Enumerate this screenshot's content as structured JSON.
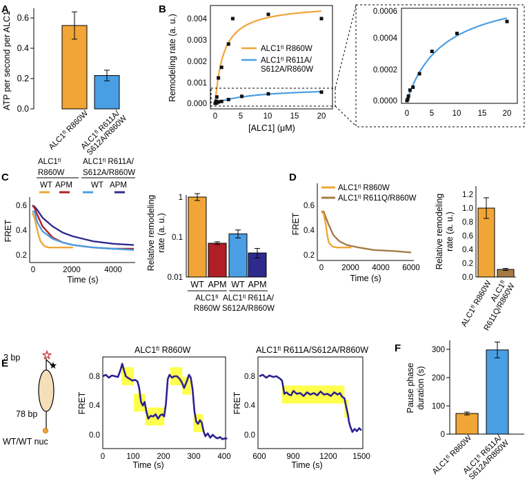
{
  "colors": {
    "orange": "#f0a536",
    "blue": "#4a9ee3",
    "red": "#b01f26",
    "navy": "#2e2b8d",
    "brown": "#a57b45",
    "trace": "#2b2190",
    "highlight": "#ffff4d"
  },
  "figure": {
    "panels": [
      "A",
      "B",
      "C",
      "D",
      "E",
      "F"
    ],
    "a": {
      "ylabel": "ATP per second per ALC1",
      "categories": [
        "ALC1ᶠˡ R860W",
        "ALC1ᶠˡ R611A/",
        "S612A/R860W"
      ],
      "yticks": [
        "0.0",
        "0.2",
        "0.4",
        "0.6"
      ]
    },
    "b": {
      "ylabel": "Remodeling rate (a. u.)",
      "xlabel": "[ALC1] (μM)",
      "yticks": [
        "0.000",
        "0.001",
        "0.002",
        "0.003",
        "0.004"
      ],
      "xticks": [
        "0",
        "5",
        "10",
        "15",
        "20"
      ],
      "legend": [
        "ALC1ᶠˡ R860W",
        "ALC1ᶠˡ R611A/",
        "S612A/R860W"
      ],
      "inset_yticks": [
        "0.0000",
        "0.0002",
        "0.0004",
        "0.0006"
      ],
      "inset_xticks": [
        "0",
        "5",
        "10",
        "15",
        "20"
      ]
    },
    "c": {
      "ylabel": "FRET",
      "xlabel": "Time (s)",
      "yticks": [
        "0.2",
        "0.4",
        "0.6"
      ],
      "xticks": [
        "0",
        "2000",
        "4000"
      ],
      "group1": [
        "ALC1ᶠˡ",
        "R860W"
      ],
      "group2": [
        "ALC1ᶠˡ R611A/",
        "S612A/R860W"
      ],
      "legend": [
        "WT",
        "APM",
        "WT",
        "APM"
      ],
      "bar_ylabel": [
        "Relative remodeling",
        "rate (a. u.)"
      ],
      "bar_yticks": [
        "1",
        "0.1",
        "0.01"
      ],
      "bar_categories": [
        "WT",
        "APM",
        "WT",
        "APM"
      ],
      "bar_groups": [
        "ALC1ᶠˡ",
        "R860W",
        "ALC1ᶠˡ R611A/",
        "S612A/R860W"
      ]
    },
    "d": {
      "ylabel": "FRET",
      "xlabel": "Time (s)",
      "yticks": [
        "0.2",
        "0.4",
        "0.6"
      ],
      "xticks": [
        "0",
        "2000",
        "4000",
        "6000"
      ],
      "legend": [
        "ALC1ᶠˡ R860W",
        "ALC1ᶠˡ R611Q/R860W"
      ],
      "bar_ylabel": [
        "Relative remodeling",
        "rate (a. u.)"
      ],
      "bar_yticks": [
        "0.0",
        "0.2",
        "0.4",
        "0.6",
        "0.8",
        "1.0",
        "1.2"
      ],
      "bar_categories": [
        "ALC1ᶠˡ R860W",
        "ALC1ᶠˡ",
        "R611Q/R860W"
      ]
    },
    "e": {
      "label_top": "3 bp",
      "label_bottom": "78 bp",
      "caption": "WT/WT nuc",
      "title1": "ALC1ᶠˡ R860W",
      "title2": "ALC1ᶠˡ R611A/S612A/R860W",
      "ylabel": "FRET",
      "xlabel": "Time (s)",
      "yticks": [
        "0.0",
        "0.4",
        "0.8"
      ],
      "xticks1": [
        "0",
        "100",
        "200",
        "300",
        "400"
      ],
      "xticks2": [
        "600",
        "900",
        "1200",
        "1500"
      ]
    },
    "f": {
      "ylabel": [
        "Pause phase",
        "duration (s)"
      ],
      "yticks": [
        "0",
        "100",
        "200",
        "300"
      ],
      "categories": [
        "ALC1ᶠˡ R860W",
        "ALC1ᶠˡ R611A/",
        "S612A/R860W"
      ]
    }
  },
  "chart_data": [
    {
      "panel": "A",
      "type": "bar",
      "categories": [
        "ALC1ᶠˡ R860W",
        "ALC1ᶠˡ R611A/S612A/R860W"
      ],
      "values": [
        0.55,
        0.22
      ],
      "errors": [
        0.09,
        0.035
      ],
      "ylabel": "ATP per second per ALC1",
      "ylim": [
        0,
        0.66
      ]
    },
    {
      "panel": "B",
      "type": "scatter",
      "xlabel": "[ALC1] (μM)",
      "ylabel": "Remodeling rate (a. u.)",
      "xlim": [
        -1,
        21.5
      ],
      "ylim": [
        -0.0002,
        0.0046
      ],
      "series": [
        {
          "name": "ALC1ᶠˡ R860W",
          "x": [
            0,
            0.15,
            0.3,
            0.6,
            1.2,
            2.5,
            3.3,
            10,
            20
          ],
          "y": [
            0,
            0.0001,
            0.0003,
            0.0012,
            0.0017,
            0.0028,
            0.004,
            0.0042,
            0.004
          ],
          "fit": {
            "vmax": 0.0047,
            "km": 1.6
          }
        },
        {
          "name": "ALC1ᶠˡ R611A/S612A/R860W",
          "x": [
            0,
            0.15,
            0.3,
            0.6,
            1.2,
            2.5,
            5,
            10,
            20
          ],
          "y": [
            0,
            1e-05,
            3e-05,
            7e-05,
            9e-05,
            0.00018,
            0.00033,
            0.00045,
            0.00053
          ],
          "fit": {
            "vmax": 0.00076,
            "km": 7.5
          }
        }
      ]
    },
    {
      "panel": "C",
      "type": "line",
      "xlabel": "Time (s)",
      "ylabel": "FRET",
      "xlim": [
        -100,
        5100
      ],
      "ylim": [
        0.17,
        0.65
      ],
      "series": [
        {
          "name": "ALC1ᶠˡ R860W WT",
          "x": [
            0,
            100,
            200,
            300,
            400,
            600,
            800,
            1000,
            1500,
            2000
          ],
          "y": [
            0.54,
            0.5,
            0.43,
            0.36,
            0.31,
            0.27,
            0.26,
            0.26,
            0.26,
            0.26
          ]
        },
        {
          "name": "ALC1ᶠˡ R860W APM",
          "x": [
            0,
            100,
            250,
            500,
            1000,
            1500,
            2000,
            3000,
            4000,
            5000
          ],
          "y": [
            0.6,
            0.58,
            0.52,
            0.43,
            0.34,
            0.3,
            0.28,
            0.26,
            0.25,
            0.25
          ]
        },
        {
          "name": "ALC1ᶠˡ R611A/S612A/R860W WT",
          "x": [
            0,
            100,
            250,
            500,
            1000,
            1500,
            2000,
            3000,
            4000,
            5000
          ],
          "y": [
            0.55,
            0.55,
            0.46,
            0.39,
            0.33,
            0.3,
            0.28,
            0.26,
            0.25,
            0.24
          ]
        },
        {
          "name": "ALC1ᶠˡ R611A/S612A/R860W APM",
          "x": [
            0,
            100,
            250,
            500,
            1000,
            1500,
            2000,
            3000,
            4000,
            5000
          ],
          "y": [
            0.6,
            0.59,
            0.56,
            0.5,
            0.43,
            0.38,
            0.35,
            0.31,
            0.29,
            0.28
          ]
        }
      ]
    },
    {
      "panel": "C",
      "type": "bar",
      "log_y": true,
      "categories": [
        "WT",
        "APM",
        "WT",
        "APM"
      ],
      "groups": [
        "ALC1ᶠˡ R860W",
        "ALC1ᶠˡ R611A/S612A/R860W"
      ],
      "values": [
        1.0,
        0.07,
        0.12,
        0.04
      ],
      "errors_upper": [
        1.22,
        0.076,
        0.15,
        0.052
      ],
      "errors_lower": [
        0.82,
        0.065,
        0.095,
        0.03
      ],
      "ylabel": "Relative remodeling rate (a. u.)",
      "ylim": [
        0.01,
        1.3
      ]
    },
    {
      "panel": "D",
      "type": "line",
      "xlabel": "Time (s)",
      "ylabel": "FRET",
      "xlim": [
        -200,
        6200
      ],
      "ylim": [
        0.15,
        0.65
      ],
      "series": [
        {
          "name": "ALC1ᶠˡ R860W",
          "x": [
            0,
            150,
            300,
            400,
            500,
            700,
            1000,
            1500,
            2000
          ],
          "y": [
            0.55,
            0.53,
            0.44,
            0.35,
            0.3,
            0.27,
            0.26,
            0.26,
            0.26
          ]
        },
        {
          "name": "ALC1ᶠˡ R611Q/R860W",
          "x": [
            0,
            150,
            300,
            500,
            800,
            1200,
            1700,
            2500,
            3500,
            5000,
            6000
          ],
          "y": [
            0.55,
            0.55,
            0.5,
            0.44,
            0.36,
            0.31,
            0.28,
            0.26,
            0.24,
            0.23,
            0.22
          ]
        }
      ]
    },
    {
      "panel": "D",
      "type": "bar",
      "categories": [
        "ALC1ᶠˡ R860W",
        "ALC1ᶠˡ R611Q/R860W"
      ],
      "values": [
        1.0,
        0.11
      ],
      "errors": [
        0.15,
        0.015
      ],
      "ylabel": "Relative remodeling rate (a. u.)",
      "ylim": [
        0,
        1.3
      ]
    },
    {
      "panel": "E",
      "type": "line",
      "title": "ALC1ᶠˡ R860W",
      "xlabel": "Time (s)",
      "ylabel": "FRET",
      "xlim": [
        0,
        420
      ],
      "ylim": [
        -0.08,
        1.02
      ],
      "x": [
        0,
        10,
        20,
        30,
        40,
        50,
        58,
        64,
        70,
        76,
        82,
        90,
        98,
        106,
        114,
        120,
        126,
        132,
        138,
        144,
        150,
        158,
        166,
        174,
        182,
        190,
        196,
        202,
        208,
        214,
        220,
        228,
        236,
        244,
        252,
        260,
        268,
        276,
        284,
        290,
        296,
        302,
        308,
        314,
        320,
        326,
        332,
        338,
        346,
        354,
        362,
        370,
        378,
        386,
        394,
        402,
        410
      ],
      "y": [
        0.8,
        0.82,
        0.78,
        0.81,
        0.8,
        0.79,
        0.88,
        0.97,
        0.88,
        0.8,
        0.78,
        0.76,
        0.74,
        0.75,
        0.73,
        0.64,
        0.45,
        0.4,
        0.45,
        0.31,
        0.22,
        0.26,
        0.25,
        0.28,
        0.22,
        0.27,
        0.28,
        0.25,
        0.42,
        0.76,
        0.82,
        0.78,
        0.8,
        0.8,
        0.77,
        0.72,
        0.64,
        0.72,
        0.82,
        0.78,
        0.62,
        0.32,
        0.18,
        0.15,
        0.2,
        0.17,
        0.05,
        -0.02,
        0.02,
        -0.04,
        0.0,
        -0.03,
        -0.05,
        -0.03,
        -0.06,
        -0.05,
        -0.05
      ],
      "dwells": [
        {
          "x0": 62,
          "x1": 102,
          "y": 0.8
        },
        {
          "x0": 102,
          "x1": 140,
          "y": 0.44
        },
        {
          "x0": 140,
          "x1": 203,
          "y": 0.25
        },
        {
          "x0": 222,
          "x1": 262,
          "y": 0.8
        },
        {
          "x0": 262,
          "x1": 290,
          "y": 0.67
        },
        {
          "x0": 298,
          "x1": 330,
          "y": 0.16
        }
      ]
    },
    {
      "panel": "E",
      "type": "line",
      "title": "ALC1ᶠˡ R611A/S612A/R860W",
      "xlabel": "Time (s)",
      "ylabel": "FRET",
      "xlim": [
        600,
        1505
      ],
      "ylim": [
        -0.08,
        1.02
      ],
      "x": [
        600,
        630,
        660,
        690,
        720,
        750,
        780,
        800,
        820,
        840,
        860,
        880,
        900,
        930,
        960,
        990,
        1020,
        1050,
        1080,
        1110,
        1140,
        1170,
        1200,
        1230,
        1260,
        1290,
        1310,
        1330,
        1350,
        1360,
        1370,
        1380,
        1390,
        1400,
        1420,
        1440,
        1460,
        1480,
        1500
      ],
      "y": [
        0.8,
        0.82,
        0.78,
        0.81,
        0.79,
        0.8,
        0.77,
        0.74,
        0.56,
        0.58,
        0.55,
        0.54,
        0.6,
        0.56,
        0.57,
        0.53,
        0.58,
        0.55,
        0.57,
        0.54,
        0.59,
        0.55,
        0.56,
        0.53,
        0.58,
        0.55,
        0.57,
        0.52,
        0.5,
        0.42,
        0.35,
        0.28,
        0.18,
        0.12,
        0.04,
        0.08,
        0.05,
        0.09,
        0.06
      ],
      "dwells": [
        {
          "x0": 800,
          "x1": 1350,
          "y": 0.55
        },
        {
          "x0": 1350,
          "x1": 1385,
          "y": 0.36
        }
      ]
    },
    {
      "panel": "F",
      "type": "bar",
      "categories": [
        "ALC1ᶠˡ R860W",
        "ALC1ᶠˡ R611A/S612A/R860W"
      ],
      "values": [
        73,
        298
      ],
      "errors": [
        5,
        28
      ],
      "ylabel": "Pause phase duration (s)",
      "ylim": [
        0,
        335
      ]
    }
  ]
}
